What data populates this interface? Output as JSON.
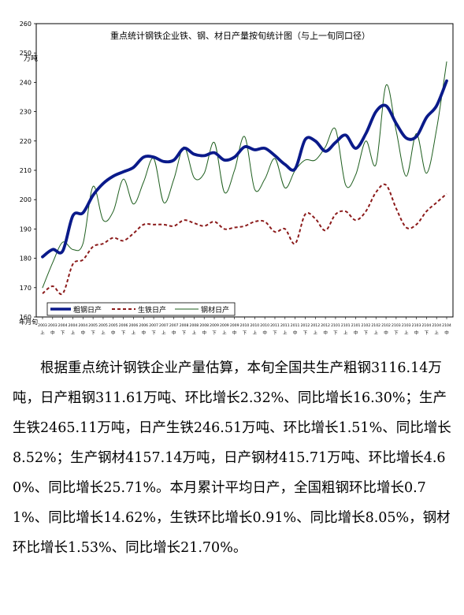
{
  "chart_data": {
    "type": "line",
    "title": "重点统计钢铁企业铁、钢、材日产量按旬统计图（与上一旬同口径）",
    "y_unit": "万吨",
    "x_corner_label": "年月旬",
    "ylim": [
      160,
      260
    ],
    "yticks": [
      160,
      170,
      180,
      190,
      200,
      210,
      220,
      230,
      240,
      250,
      260
    ],
    "grid": false,
    "legend_position": "bottom-left",
    "x_month_labels": [
      "2003",
      "2003",
      "2004",
      "2004",
      "2004",
      "2005",
      "2005",
      "2005",
      "2006",
      "2006",
      "2006",
      "2007",
      "2007",
      "2007",
      "2008",
      "2008",
      "2008",
      "2009",
      "2009",
      "2009",
      "2010",
      "2010",
      "2010",
      "2011",
      "2011",
      "2011",
      "2012",
      "2012",
      "2012",
      "2101",
      "2101",
      "2101",
      "2102",
      "2102",
      "2102",
      "2103",
      "2103",
      "2103",
      "2104",
      "2104",
      "2104"
    ],
    "x_dekad_labels": [
      "上",
      "中",
      "下",
      "上",
      "中",
      "下",
      "上",
      "中",
      "下",
      "上",
      "中",
      "下",
      "上",
      "中",
      "下",
      "上",
      "中",
      "下",
      "上",
      "中",
      "下",
      "上",
      "中",
      "下",
      "上",
      "中",
      "下",
      "上",
      "中",
      "下",
      "上",
      "中",
      "下",
      "上",
      "中",
      "下",
      "上",
      "中",
      "下",
      "上",
      "中"
    ],
    "series": [
      {
        "name": "粗钢日产",
        "color": "#0a1a8a",
        "style": "solid-thick",
        "values": [
          180.5,
          183.0,
          182.5,
          194.5,
          195.5,
          201.5,
          205.5,
          208.0,
          209.5,
          211.0,
          214.5,
          214.5,
          213.0,
          213.5,
          217.5,
          215.5,
          215.0,
          216.0,
          213.5,
          214.5,
          218.0,
          217.0,
          217.5,
          215.0,
          212.0,
          210.5,
          220.5,
          220.0,
          216.5,
          219.5,
          222.0,
          217.5,
          222.5,
          230.0,
          232.0,
          226.0,
          221.0,
          221.5,
          228.0,
          232.0,
          240.5
        ]
      },
      {
        "name": "生铁日产",
        "color": "#8b1a1a",
        "style": "dashed",
        "values": [
          168.0,
          170.5,
          168.0,
          178.0,
          179.5,
          184.0,
          185.0,
          187.0,
          186.0,
          188.5,
          191.5,
          191.5,
          191.5,
          191.0,
          193.0,
          192.0,
          191.0,
          192.5,
          190.0,
          190.5,
          191.0,
          192.5,
          192.5,
          189.0,
          190.0,
          185.0,
          195.0,
          193.5,
          189.5,
          195.0,
          196.0,
          193.0,
          196.0,
          202.5,
          205.0,
          197.0,
          190.5,
          191.5,
          196.0,
          199.0,
          202.0
        ]
      },
      {
        "name": "钢材日产",
        "color": "#1e5e1e",
        "style": "solid-thin",
        "values": [
          170.0,
          178.5,
          185.5,
          183.0,
          185.0,
          204.5,
          193.0,
          196.0,
          207.0,
          198.5,
          206.0,
          214.0,
          199.0,
          207.0,
          218.0,
          207.5,
          209.0,
          219.5,
          202.5,
          210.0,
          221.5,
          203.5,
          207.0,
          214.0,
          204.0,
          210.0,
          213.5,
          213.5,
          218.0,
          224.0,
          205.0,
          208.5,
          220.0,
          212.0,
          239.0,
          223.5,
          208.0,
          222.5,
          209.0,
          224.0,
          247.0
        ]
      }
    ]
  },
  "text": {
    "paragraph": "根据重点统计钢铁企业产量估算，本旬全国共生产粗钢3116.14万吨，日产粗钢311.61万吨、环比增长2.32%、同比增长16.30%；生产生铁2465.11万吨，日产生铁246.51万吨、环比增长1.51%、同比增长8.52%；生产钢材4157.14万吨，日产钢材415.71万吨、环比增长4.60%、同比增长25.71%。本月累计平均日产，全国粗钢环比增长0.71%、同比增长14.62%，生铁环比增长0.91%、同比增长8.05%，钢材环比增长1.53%、同比增长21.70%。"
  }
}
